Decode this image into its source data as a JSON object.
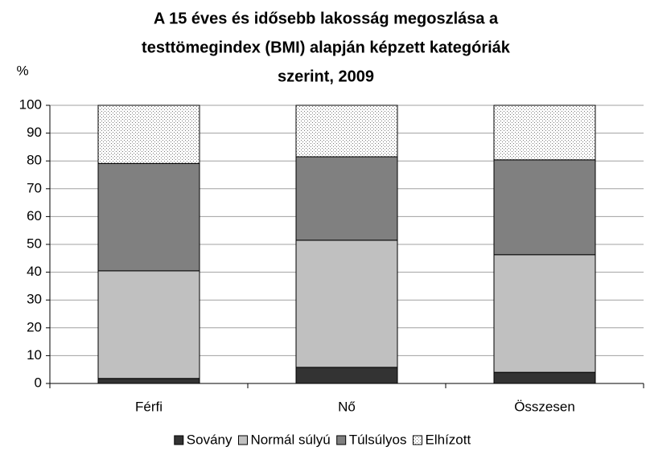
{
  "chart_data": {
    "type": "stacked_bar",
    "title": [
      "A 15 éves és idősebb lakosság megoszlása a",
      "testtömegindex (BMI) alapján képzett kategóriák",
      "szerint, 2009"
    ],
    "y_axis_label": "%",
    "categories": [
      "Férfi",
      "Nő",
      "Összesen"
    ],
    "series": [
      {
        "name": "Sovány",
        "color": "#333333",
        "values": [
          1.8,
          5.8,
          4.0
        ]
      },
      {
        "name": "Normál súlyú",
        "color": "#c0c0c0",
        "values": [
          38.7,
          45.7,
          42.3
        ]
      },
      {
        "name": "Túlsúlyos",
        "color": "#808080",
        "values": [
          38.6,
          30.0,
          34.1
        ]
      },
      {
        "name": "Elhízott",
        "color": "#ffffff",
        "pattern": "dots",
        "values": [
          20.9,
          18.5,
          19.6
        ]
      }
    ],
    "ylim": [
      0,
      100
    ],
    "yticks": [
      0,
      10,
      20,
      30,
      40,
      50,
      60,
      70,
      80,
      90,
      100
    ],
    "grid": true,
    "legend": "bottom"
  }
}
